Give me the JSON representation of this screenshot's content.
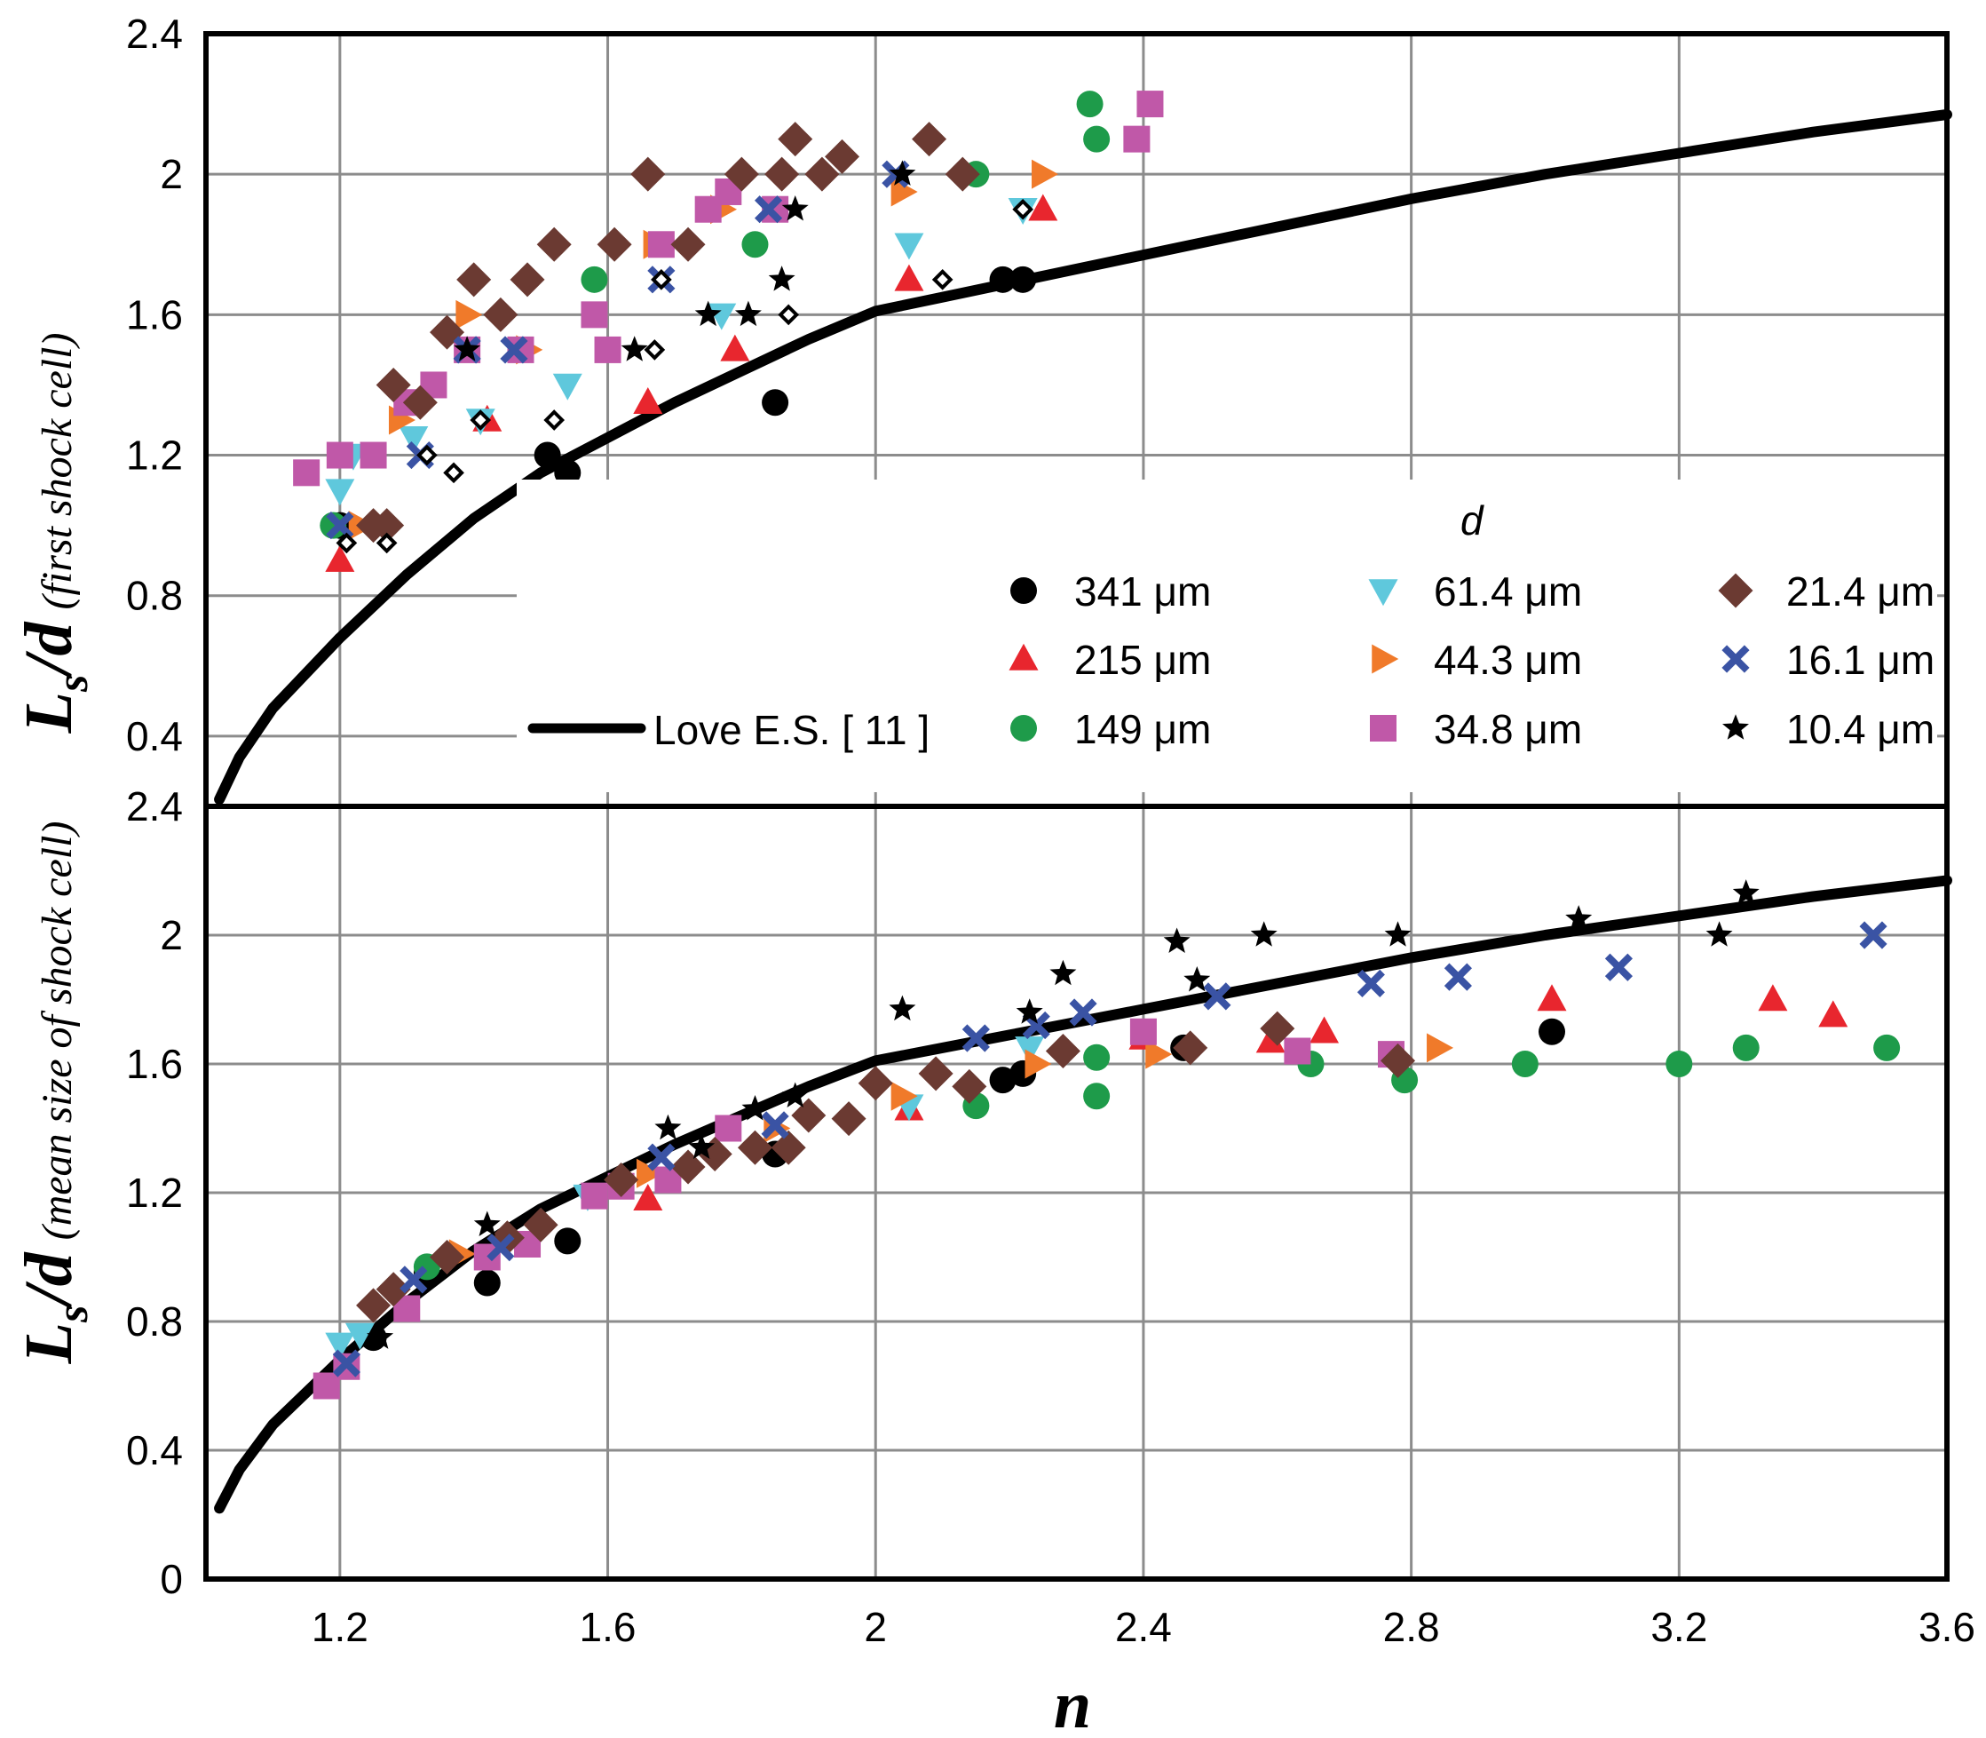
{
  "chart_data": {
    "type": "scatter",
    "xlabel": "n",
    "xlim": [
      1,
      3.6
    ],
    "x_ticks": [
      "1.2",
      "1.6",
      "2",
      "2.4",
      "2.8",
      "3.2",
      "3.6"
    ],
    "legend_title": "d",
    "legend_unit": "μm",
    "series_meta": [
      {
        "name": "341",
        "color": "#000000",
        "marker": "circle"
      },
      {
        "name": "215",
        "color": "#e8262e",
        "marker": "triangle-up"
      },
      {
        "name": "149",
        "color": "#1e9b4a",
        "marker": "circle"
      },
      {
        "name": "61.4",
        "color": "#5fc8dc",
        "marker": "triangle-down"
      },
      {
        "name": "44.3",
        "color": "#f07a2a",
        "marker": "triangle-right"
      },
      {
        "name": "34.8",
        "color": "#c058a8",
        "marker": "square"
      },
      {
        "name": "21.4",
        "color": "#6b3a32",
        "marker": "diamond"
      },
      {
        "name": "16.1",
        "color": "#3a53a4",
        "marker": "x"
      },
      {
        "name": "10.4",
        "color": "#000000",
        "marker": "star"
      }
    ],
    "curve": {
      "name": "Love E.S. [ 11 ]",
      "x": [
        1.02,
        1.05,
        1.1,
        1.2,
        1.3,
        1.4,
        1.5,
        1.6,
        1.7,
        1.8,
        1.9,
        2.0,
        2.1,
        2.2,
        2.4,
        2.6,
        2.8,
        3.0,
        3.2,
        3.4,
        3.6
      ],
      "y": [
        0.22,
        0.34,
        0.48,
        0.68,
        0.86,
        1.02,
        1.15,
        1.25,
        1.35,
        1.44,
        1.53,
        1.61,
        1.65,
        1.69,
        1.77,
        1.85,
        1.93,
        2.0,
        2.06,
        2.12,
        2.17
      ]
    },
    "panels": [
      {
        "ylabel_main": "L",
        "ylabel_sub": "s",
        "ylabel_rest": "/d",
        "ylabel_paren": "(first shock cell)",
        "ylim": [
          0.2,
          2.4
        ],
        "y_ticks": [
          "0.4",
          "0.8",
          "1.2",
          "1.6",
          "2",
          "2.4"
        ],
        "series": [
          {
            "name": "341",
            "points": [
              [
                1.51,
                1.2
              ],
              [
                1.54,
                1.15
              ],
              [
                1.85,
                1.35
              ],
              [
                2.19,
                1.7
              ],
              [
                2.22,
                1.7
              ],
              [
                1.2,
                1.0
              ]
            ]
          },
          {
            "name": "215",
            "points": [
              [
                1.2,
                0.9
              ],
              [
                1.42,
                1.3
              ],
              [
                1.66,
                1.35
              ],
              [
                1.79,
                1.5
              ],
              [
                2.05,
                1.7
              ],
              [
                2.25,
                1.9
              ]
            ]
          },
          {
            "name": "149",
            "points": [
              [
                1.19,
                1.0
              ],
              [
                1.58,
                1.7
              ],
              [
                1.82,
                1.8
              ],
              [
                2.15,
                2.0
              ],
              [
                2.32,
                2.2
              ],
              [
                2.33,
                2.1
              ]
            ]
          },
          {
            "name": "61.4",
            "points": [
              [
                1.2,
                1.1
              ],
              [
                1.22,
                1.2
              ],
              [
                1.31,
                1.25
              ],
              [
                1.41,
                1.3
              ],
              [
                1.54,
                1.4
              ],
              [
                1.77,
                1.6
              ],
              [
                2.05,
                1.8
              ],
              [
                2.22,
                1.9
              ]
            ]
          },
          {
            "name": "44.3",
            "points": [
              [
                1.23,
                1.0
              ],
              [
                1.29,
                1.3
              ],
              [
                1.39,
                1.6
              ],
              [
                1.48,
                1.5
              ],
              [
                1.67,
                1.8
              ],
              [
                1.77,
                1.9
              ],
              [
                2.04,
                1.95
              ],
              [
                2.25,
                2.0
              ]
            ]
          },
          {
            "name": "34.8",
            "points": [
              [
                1.15,
                1.15
              ],
              [
                1.2,
                1.2
              ],
              [
                1.25,
                1.2
              ],
              [
                1.3,
                1.35
              ],
              [
                1.34,
                1.4
              ],
              [
                1.39,
                1.5
              ],
              [
                1.47,
                1.5
              ],
              [
                1.58,
                1.6
              ],
              [
                1.6,
                1.5
              ],
              [
                1.68,
                1.8
              ],
              [
                1.75,
                1.9
              ],
              [
                1.78,
                1.95
              ],
              [
                1.85,
                1.9
              ],
              [
                2.39,
                2.1
              ],
              [
                2.41,
                2.2
              ]
            ]
          },
          {
            "name": "21.4",
            "points": [
              [
                1.28,
                1.4
              ],
              [
                1.32,
                1.35
              ],
              [
                1.36,
                1.55
              ],
              [
                1.4,
                1.7
              ],
              [
                1.44,
                1.6
              ],
              [
                1.48,
                1.7
              ],
              [
                1.52,
                1.8
              ],
              [
                1.61,
                1.8
              ],
              [
                1.66,
                2.0
              ],
              [
                1.72,
                1.8
              ],
              [
                1.8,
                2.0
              ],
              [
                1.86,
                2.0
              ],
              [
                1.88,
                2.1
              ],
              [
                1.92,
                2.0
              ],
              [
                1.95,
                2.05
              ],
              [
                2.08,
                2.1
              ],
              [
                2.13,
                2.0
              ],
              [
                1.25,
                1.0
              ],
              [
                1.27,
                1.0
              ]
            ]
          },
          {
            "name": "16.1",
            "points": [
              [
                1.2,
                1.0
              ],
              [
                1.32,
                1.2
              ],
              [
                1.39,
                1.5
              ],
              [
                1.46,
                1.5
              ],
              [
                1.68,
                1.7
              ],
              [
                1.84,
                1.9
              ],
              [
                2.03,
                2.0
              ]
            ]
          },
          {
            "name": "10.4",
            "points": [
              [
                1.39,
                1.5
              ],
              [
                1.64,
                1.5
              ],
              [
                1.75,
                1.6
              ],
              [
                1.81,
                1.6
              ],
              [
                1.86,
                1.7
              ],
              [
                1.88,
                1.9
              ],
              [
                2.04,
                2.0
              ]
            ]
          },
          {
            "name": "open diamonds",
            "points": [
              [
                1.21,
                0.95
              ],
              [
                1.27,
                0.95
              ],
              [
                1.33,
                1.2
              ],
              [
                1.37,
                1.15
              ],
              [
                1.41,
                1.3
              ],
              [
                1.52,
                1.3
              ],
              [
                1.67,
                1.5
              ],
              [
                1.68,
                1.7
              ],
              [
                1.87,
                1.6
              ],
              [
                2.1,
                1.7
              ],
              [
                2.22,
                1.9
              ]
            ]
          }
        ]
      },
      {
        "ylabel_main": "L",
        "ylabel_sub": "s",
        "ylabel_rest": "/d",
        "ylabel_paren": "(mean size of  shock cell)",
        "ylim": [
          0,
          2.4
        ],
        "y_ticks": [
          "0",
          "0.4",
          "0.8",
          "1.2",
          "1.6",
          "2",
          "2.4"
        ],
        "series": [
          {
            "name": "341",
            "points": [
              [
                1.25,
                0.75
              ],
              [
                1.33,
                0.95
              ],
              [
                1.42,
                0.92
              ],
              [
                1.54,
                1.05
              ],
              [
                1.85,
                1.32
              ],
              [
                2.19,
                1.55
              ],
              [
                2.22,
                1.57
              ],
              [
                2.46,
                1.65
              ],
              [
                3.01,
                1.7
              ]
            ]
          },
          {
            "name": "215",
            "points": [
              [
                1.66,
                1.18
              ],
              [
                2.05,
                1.46
              ],
              [
                2.4,
                1.68
              ],
              [
                2.59,
                1.67
              ],
              [
                2.67,
                1.7
              ],
              [
                3.01,
                1.8
              ],
              [
                3.34,
                1.8
              ],
              [
                3.43,
                1.75
              ]
            ]
          },
          {
            "name": "149",
            "points": [
              [
                1.33,
                0.97
              ],
              [
                2.15,
                1.47
              ],
              [
                2.33,
                1.5
              ],
              [
                2.33,
                1.62
              ],
              [
                2.65,
                1.6
              ],
              [
                2.79,
                1.55
              ],
              [
                2.97,
                1.6
              ],
              [
                3.2,
                1.6
              ],
              [
                3.3,
                1.65
              ],
              [
                3.51,
                1.65
              ]
            ]
          },
          {
            "name": "61.4",
            "points": [
              [
                1.2,
                0.73
              ],
              [
                1.23,
                0.76
              ],
              [
                1.57,
                1.19
              ],
              [
                2.05,
                1.47
              ],
              [
                2.23,
                1.65
              ]
            ]
          },
          {
            "name": "44.3",
            "points": [
              [
                1.38,
                1.01
              ],
              [
                1.66,
                1.26
              ],
              [
                1.85,
                1.4
              ],
              [
                2.04,
                1.5
              ],
              [
                2.24,
                1.6
              ],
              [
                2.42,
                1.63
              ],
              [
                2.84,
                1.65
              ]
            ]
          },
          {
            "name": "34.8",
            "points": [
              [
                1.18,
                0.6
              ],
              [
                1.21,
                0.66
              ],
              [
                1.3,
                0.84
              ],
              [
                1.42,
                1.0
              ],
              [
                1.48,
                1.04
              ],
              [
                1.58,
                1.19
              ],
              [
                1.62,
                1.22
              ],
              [
                1.69,
                1.24
              ],
              [
                1.78,
                1.4
              ],
              [
                2.4,
                1.7
              ],
              [
                2.63,
                1.64
              ],
              [
                2.77,
                1.63
              ]
            ]
          },
          {
            "name": "21.4",
            "points": [
              [
                1.25,
                0.85
              ],
              [
                1.28,
                0.9
              ],
              [
                1.36,
                1.0
              ],
              [
                1.45,
                1.06
              ],
              [
                1.5,
                1.1
              ],
              [
                1.62,
                1.24
              ],
              [
                1.72,
                1.28
              ],
              [
                1.76,
                1.32
              ],
              [
                1.82,
                1.34
              ],
              [
                1.87,
                1.34
              ],
              [
                1.9,
                1.44
              ],
              [
                1.96,
                1.43
              ],
              [
                2.0,
                1.54
              ],
              [
                2.09,
                1.57
              ],
              [
                2.14,
                1.53
              ],
              [
                2.28,
                1.64
              ],
              [
                2.47,
                1.65
              ],
              [
                2.6,
                1.71
              ],
              [
                2.78,
                1.61
              ]
            ]
          },
          {
            "name": "16.1",
            "points": [
              [
                1.21,
                0.67
              ],
              [
                1.31,
                0.93
              ],
              [
                1.44,
                1.03
              ],
              [
                1.68,
                1.31
              ],
              [
                1.85,
                1.41
              ],
              [
                2.15,
                1.68
              ],
              [
                2.24,
                1.72
              ],
              [
                2.31,
                1.76
              ],
              [
                2.51,
                1.81
              ],
              [
                2.74,
                1.85
              ],
              [
                2.87,
                1.87
              ],
              [
                3.11,
                1.9
              ],
              [
                3.49,
                2.0
              ]
            ]
          },
          {
            "name": "10.4",
            "points": [
              [
                1.26,
                0.75
              ],
              [
                1.42,
                1.1
              ],
              [
                1.69,
                1.4
              ],
              [
                1.74,
                1.34
              ],
              [
                1.82,
                1.46
              ],
              [
                1.88,
                1.5
              ],
              [
                2.04,
                1.77
              ],
              [
                2.23,
                1.76
              ],
              [
                2.28,
                1.88
              ],
              [
                2.45,
                1.98
              ],
              [
                2.48,
                1.86
              ],
              [
                2.58,
                2.0
              ],
              [
                2.78,
                2.0
              ],
              [
                3.05,
                2.05
              ],
              [
                3.26,
                2.0
              ],
              [
                3.3,
                2.13
              ]
            ]
          }
        ]
      }
    ]
  }
}
